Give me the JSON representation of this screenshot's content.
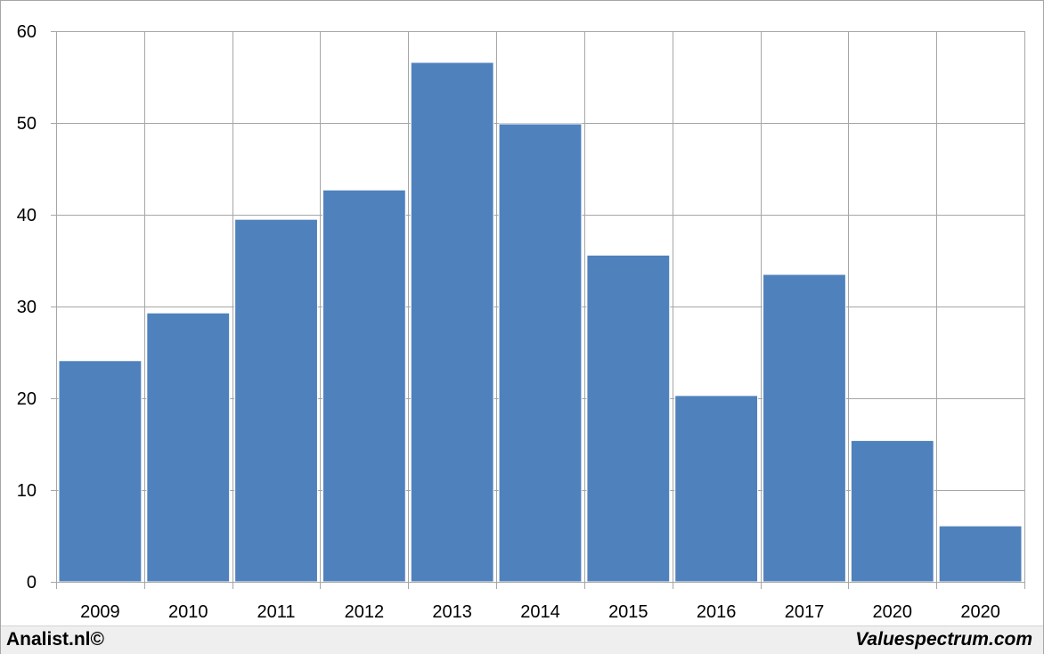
{
  "chart_data": {
    "type": "bar",
    "categories": [
      "2009",
      "2010",
      "2011",
      "2012",
      "2013",
      "2014",
      "2015",
      "2016",
      "2017",
      "2020",
      "2020"
    ],
    "values": [
      24.1,
      29.3,
      39.5,
      42.7,
      56.6,
      49.9,
      35.6,
      20.3,
      33.5,
      15.4,
      6.1
    ],
    "ylim": [
      0,
      60
    ],
    "yticks": [
      0,
      10,
      20,
      30,
      40,
      50,
      60
    ],
    "grid": true,
    "bar_color": "#4f81bd",
    "grid_color": "#a6a6a6"
  },
  "footer": {
    "left_credit": "Analist.nl©",
    "right_credit": "Valuespectrum.com"
  }
}
